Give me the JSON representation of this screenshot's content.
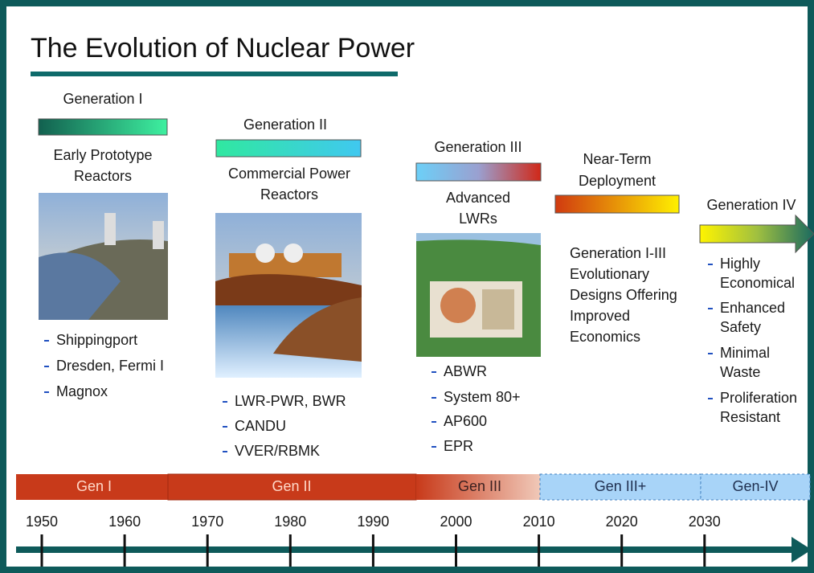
{
  "title": "The Evolution of Nuclear Power",
  "columns": [
    {
      "heading": [
        "Generation I"
      ],
      "subtitle": [
        "Early Prototype",
        "Reactors"
      ],
      "items": [
        [
          "Shippingport"
        ],
        [
          "Dresden, Fermi I"
        ],
        [
          "Magnox"
        ]
      ]
    },
    {
      "heading": [
        "Generation II"
      ],
      "subtitle": [
        "Commercial Power",
        "Reactors"
      ],
      "items": [
        [
          "LWR-PWR, BWR"
        ],
        [
          "CANDU"
        ],
        [
          "VVER/RBMK"
        ]
      ]
    },
    {
      "heading": [
        "Generation III"
      ],
      "subtitle": [
        "Advanced",
        "LWRs"
      ],
      "items": [
        [
          "ABWR"
        ],
        [
          "System 80+"
        ],
        [
          "AP600"
        ],
        [
          "EPR"
        ]
      ]
    },
    {
      "heading": [
        "Near-Term",
        "Deployment"
      ],
      "subtitle": [
        "Generation I-III",
        "Evolutionary",
        "Designs Offering",
        "Improved",
        "Economics"
      ],
      "items": []
    },
    {
      "heading": [
        "Generation IV"
      ],
      "subtitle": [],
      "items": [
        [
          "Highly",
          "Economical"
        ],
        [
          "Enhanced",
          "Safety"
        ],
        [
          "Minimal",
          "Waste"
        ],
        [
          "Proliferation",
          "Resistant"
        ]
      ]
    }
  ],
  "eras": [
    "Gen I",
    "Gen II",
    "Gen III",
    "Gen III+",
    "Gen-IV"
  ],
  "years": [
    1950,
    1960,
    1970,
    1980,
    1990,
    2000,
    2010,
    2020,
    2030
  ]
}
